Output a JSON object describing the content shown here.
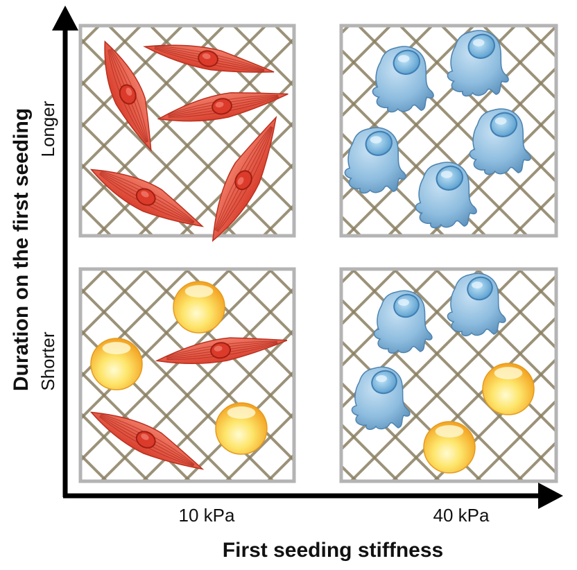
{
  "x_axis": {
    "title": "First seeding stiffness",
    "ticks": [
      "10 kPa",
      "40 kPa"
    ]
  },
  "y_axis": {
    "title": "Duration on the first seeding",
    "ticks": [
      "Longer",
      "Shorter"
    ]
  },
  "panels": [
    {
      "stiffness": "10 kPa",
      "duration": "Longer",
      "cells": [
        "spindle",
        "spindle",
        "spindle",
        "spindle",
        "spindle"
      ]
    },
    {
      "stiffness": "40 kPa",
      "duration": "Longer",
      "cells": [
        "blob",
        "blob",
        "blob",
        "blob",
        "blob"
      ]
    },
    {
      "stiffness": "10 kPa",
      "duration": "Shorter",
      "cells": [
        "sphere",
        "sphere",
        "spindle",
        "spindle",
        "sphere"
      ]
    },
    {
      "stiffness": "40 kPa",
      "duration": "Shorter",
      "cells": [
        "blob",
        "blob",
        "blob",
        "sphere",
        "sphere"
      ]
    }
  ],
  "colors": {
    "axis": "#000000",
    "frame": "#b4b4b4",
    "mesh": "#8a7f62",
    "spindle_cell": "#e8543f",
    "blob_cell": "#7fb3d8",
    "sphere_cell": "#f8c43a"
  }
}
